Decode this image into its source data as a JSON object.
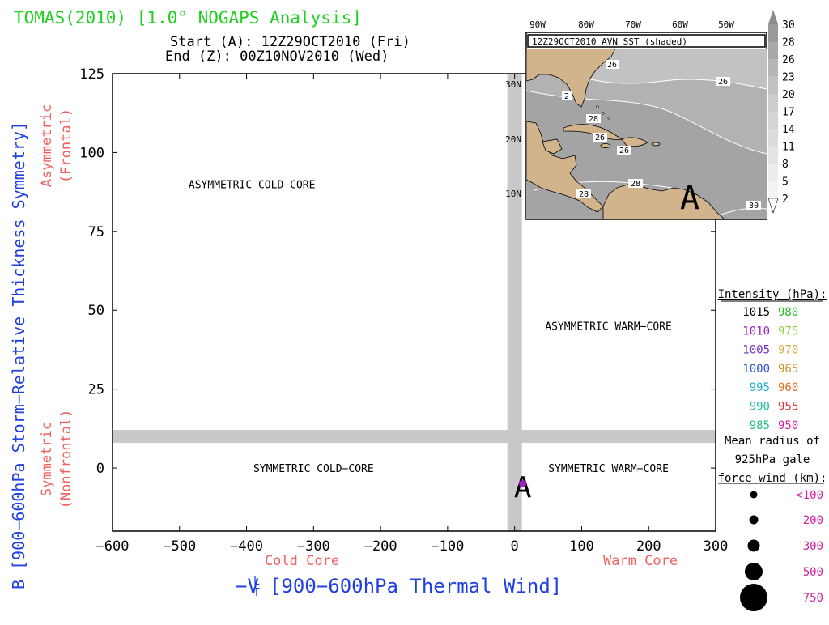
{
  "header": {
    "title": "TOMAS(2010) [1.0° NOGAPS Analysis]",
    "start": "Start (A): 12Z29OCT2010 (Fri)",
    "end": "End (Z): 00Z10NOV2010 (Wed)"
  },
  "chart_data": {
    "type": "scatter",
    "title": "TOMAS(2010) [1.0° NOGAPS Analysis]",
    "xlabel": "-V_T^L [900-600hPa Thermal Wind]",
    "xlabel_main": "−V",
    "xlabel_sup": "L",
    "xlabel_sub": "T",
    "xlabel_rest": "[900−600hPa Thermal Wind]",
    "ylabel": "B [900-600hPa Storm-Relative Thickness Symmetry]",
    "ylabel_display": "B [900−600hPa Storm−Relative Thickness Symmetry]",
    "xlim": [
      -600,
      300
    ],
    "ylim": [
      -20,
      125
    ],
    "xticks": [
      "−600",
      "−500",
      "−400",
      "−300",
      "−200",
      "−100",
      "0",
      "100",
      "200",
      "300"
    ],
    "xtick_values": [
      -600,
      -500,
      -400,
      -300,
      -200,
      -100,
      0,
      100,
      200,
      300
    ],
    "yticks": [
      "125",
      "100",
      "75",
      "50",
      "25",
      "0"
    ],
    "ytick_values": [
      125,
      100,
      75,
      50,
      25,
      0
    ],
    "threshold_lines": {
      "x": 0,
      "y": 10
    },
    "x_side_labels": {
      "left": "Cold Core",
      "right": "Warm Core"
    },
    "y_side_labels": {
      "upper": [
        "Asymmetric",
        "(Frontal)"
      ],
      "lower": [
        "Symmetric",
        "(Nonfrontal)"
      ]
    },
    "quadrants": {
      "asym_cold": "ASYMMETRIC COLD−CORE",
      "asym_warm": "ASYMMETRIC WARM−CORE",
      "sym_cold": "SYMMETRIC COLD−CORE",
      "sym_warm": "SYMMETRIC WARM−CORE"
    },
    "points": [
      {
        "label": "A",
        "x": 12,
        "y": -5,
        "color": "#a020c0"
      }
    ],
    "grid": false
  },
  "inset_map": {
    "title": "12Z29OCT2010 AVN SST (shaded)",
    "lon_labels": [
      "90W",
      "80W",
      "70W",
      "60W",
      "50W"
    ],
    "lat_labels": [
      "30N",
      "20N",
      "10N"
    ],
    "contour_labels": [
      "26",
      "26",
      "28",
      "26",
      "28",
      "26",
      "28",
      "30",
      "2"
    ],
    "start_marker": "A",
    "colorbar": [
      "30",
      "28",
      "26",
      "23",
      "20",
      "17",
      "14",
      "11",
      "8",
      "5",
      "2"
    ]
  },
  "legend": {
    "intensity_title": "Intensity (hPa):",
    "intensity": [
      [
        "1015",
        "#000000",
        "980",
        "#20c020"
      ],
      [
        "1010",
        "#a020c0",
        "975",
        "#90d040"
      ],
      [
        "1005",
        "#7030c0",
        "970",
        "#d8b040"
      ],
      [
        "1000",
        "#3050d0",
        "965",
        "#d09020"
      ],
      [
        "995",
        "#20b0d0",
        "960",
        "#e07020"
      ],
      [
        "990",
        "#20c0a0",
        "955",
        "#e03030"
      ],
      [
        "985",
        "#20c080",
        "950",
        "#d020a0"
      ]
    ],
    "radius_title": [
      "Mean radius of",
      "925hPa gale",
      "force wind (km):"
    ],
    "radius": [
      {
        "label": "<100",
        "size": 4.5
      },
      {
        "label": "200",
        "size": 5.5
      },
      {
        "label": "300",
        "size": 7.5
      },
      {
        "label": "500",
        "size": 11
      },
      {
        "label": "750",
        "size": 17
      }
    ],
    "radius_label_color": "#d020a0"
  },
  "colors": {
    "title": "#20d020",
    "axis_blue": "#2040e0",
    "side_red": "#f06060",
    "threshold": "#c8c8c8"
  }
}
